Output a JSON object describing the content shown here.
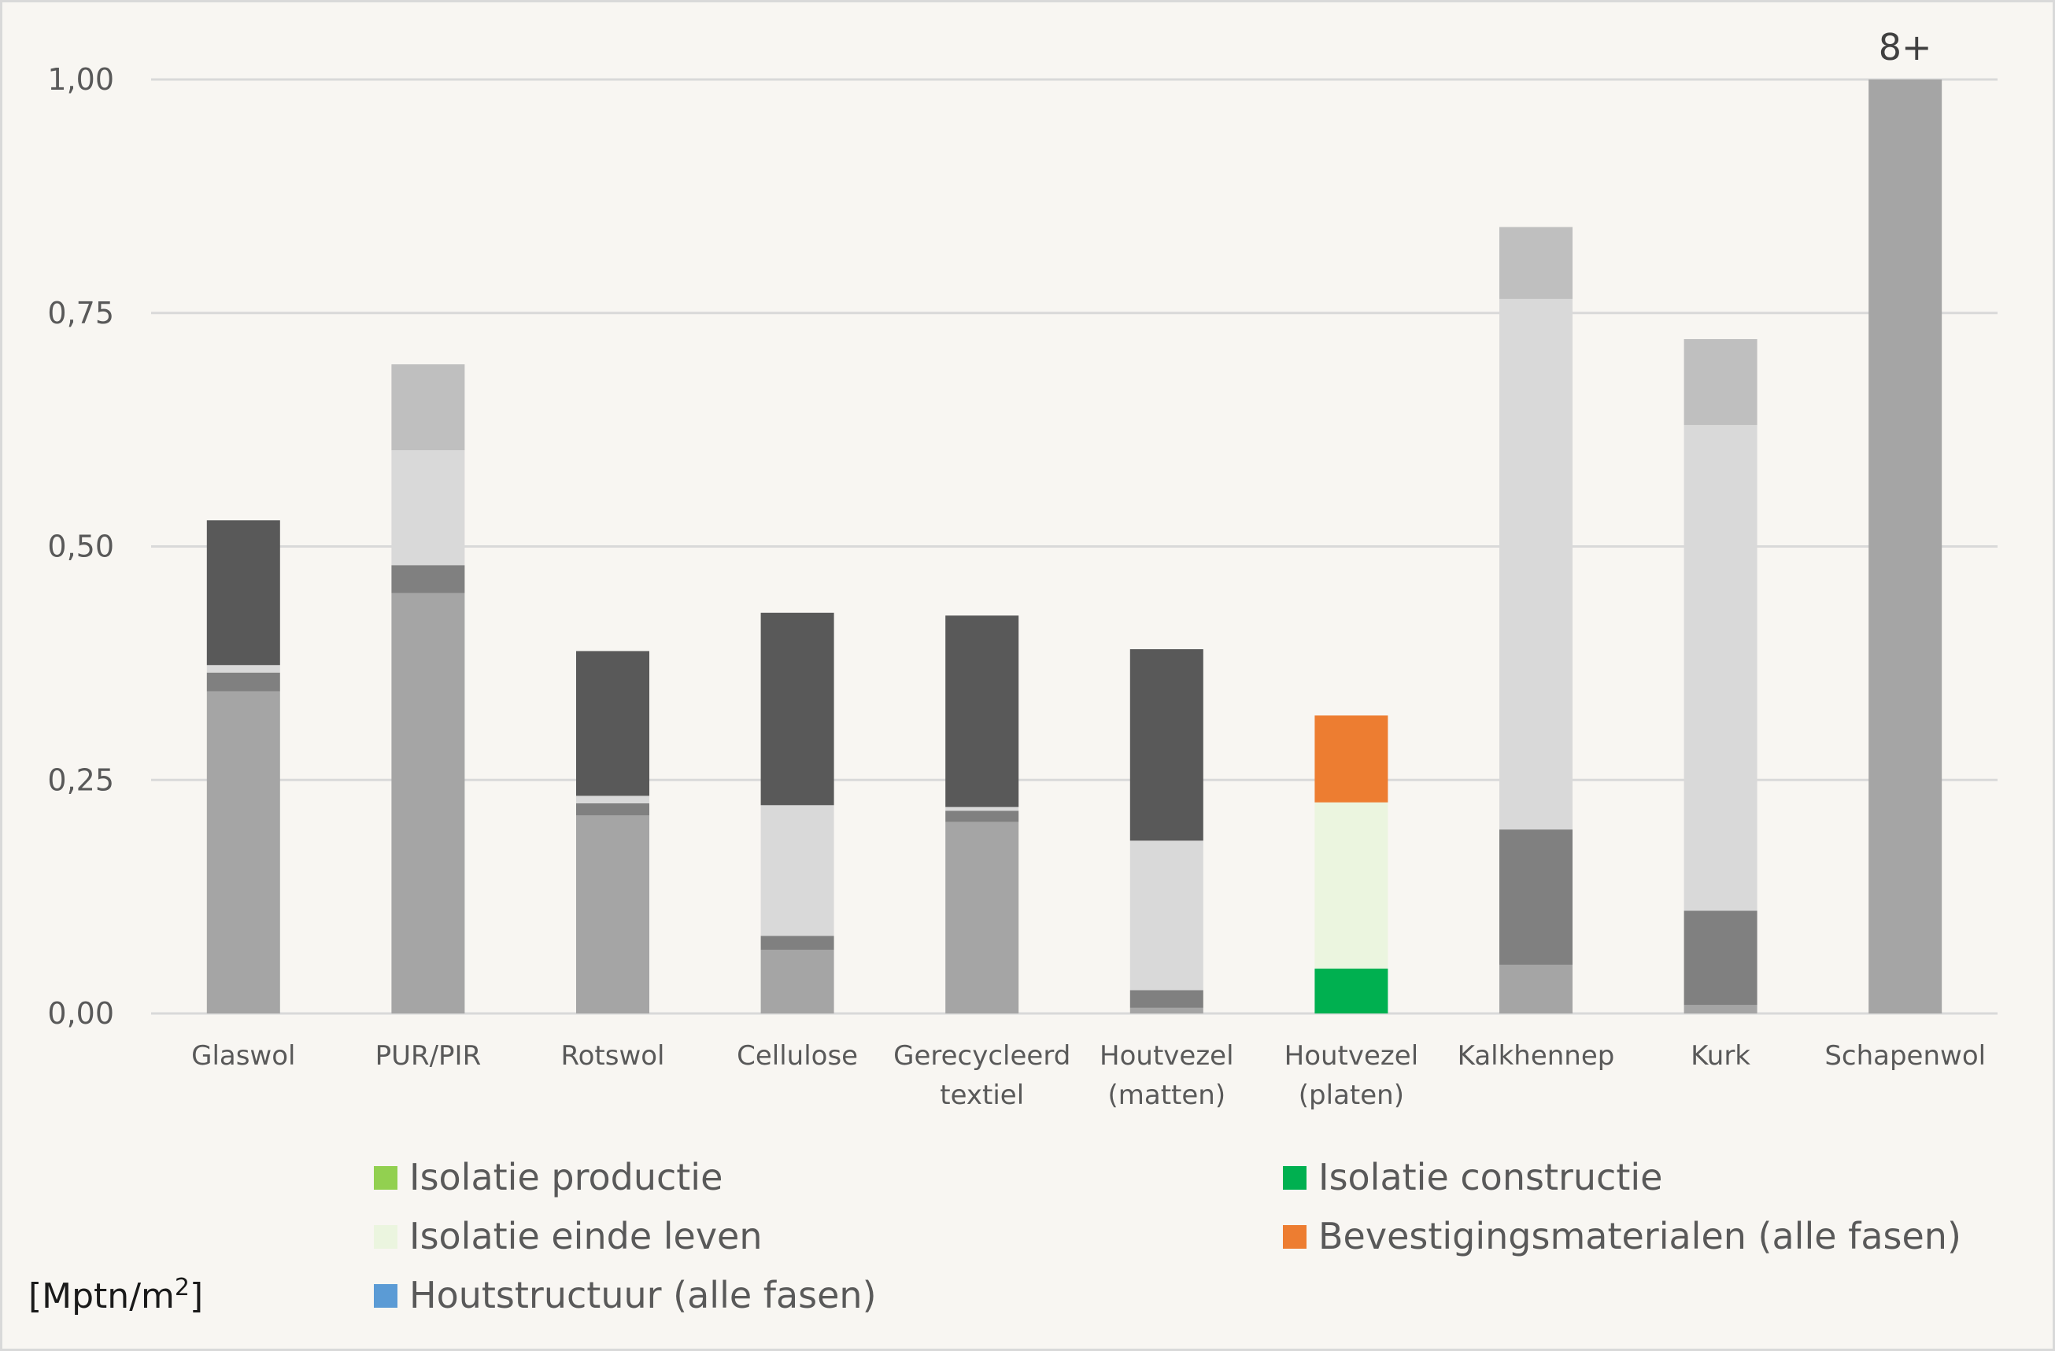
{
  "chart_data": {
    "type": "bar",
    "stacked": true,
    "categories": [
      [
        "Glaswol"
      ],
      [
        "PUR/PIR"
      ],
      [
        "Rotswol"
      ],
      [
        "Cellulose"
      ],
      [
        "Gerecycleerd",
        "textiel"
      ],
      [
        "Houtvezel",
        "(matten)"
      ],
      [
        "Houtvezel",
        "(platen)"
      ],
      [
        "Kalkhennep"
      ],
      [
        "Kurk"
      ],
      [
        "Schapenwol"
      ]
    ],
    "ylim": [
      0,
      1.0
    ],
    "yticks": [
      {
        "value": 0,
        "label": "0,00"
      },
      {
        "value": 0.25,
        "label": "0,25"
      },
      {
        "value": 0.5,
        "label": "0,50"
      },
      {
        "value": 0.75,
        "label": "0,75"
      },
      {
        "value": 1.0,
        "label": "1,00"
      }
    ],
    "ylabel": "[Mptn/m²]",
    "grid": true,
    "legend_position": "bottom",
    "colors": {
      "Isolatie productie": "#92d050",
      "Isolatie constructie": "#00b050",
      "Isolatie einde leven": "#ebf5df",
      "Bevestigingsmaterialen (alle fasen)": "#ed7d31",
      "Houtstructuur (alle fasen)": "#5b9bd5"
    },
    "legend": [
      "Isolatie productie",
      "Isolatie constructie",
      "Isolatie einde leven",
      "Bevestigingsmaterialen (alle fasen)",
      "Houtstructuur (alle fasen)"
    ],
    "segments": [
      [
        {
          "value": 0.345,
          "color": "#a5a5a5"
        },
        {
          "value": 0.02,
          "color": "#808080"
        },
        {
          "value": 0.008,
          "color": "#d9d9d9"
        },
        {
          "value": 0.155,
          "color": "#595959"
        }
      ],
      [
        {
          "value": 0.45,
          "color": "#a5a5a5"
        },
        {
          "value": 0.03,
          "color": "#808080"
        },
        {
          "value": 0.123,
          "color": "#d9d9d9"
        },
        {
          "value": 0.092,
          "color": "#bfbfbf"
        }
      ],
      [
        {
          "value": 0.212,
          "color": "#a5a5a5"
        },
        {
          "value": 0.013,
          "color": "#808080"
        },
        {
          "value": 0.008,
          "color": "#d9d9d9"
        },
        {
          "value": 0.155,
          "color": "#595959"
        }
      ],
      [
        {
          "value": 0.068,
          "color": "#a5a5a5"
        },
        {
          "value": 0.015,
          "color": "#808080"
        },
        {
          "value": 0.14,
          "color": "#d9d9d9"
        },
        {
          "value": 0.206,
          "color": "#595959"
        }
      ],
      [
        {
          "value": 0.205,
          "color": "#a5a5a5"
        },
        {
          "value": 0.012,
          "color": "#808080"
        },
        {
          "value": 0.004,
          "color": "#d9d9d9"
        },
        {
          "value": 0.205,
          "color": "#595959"
        }
      ],
      [
        {
          "value": 0.006,
          "color": "#a5a5a5"
        },
        {
          "value": 0.019,
          "color": "#808080"
        },
        {
          "value": 0.16,
          "color": "#d9d9d9"
        },
        {
          "value": 0.205,
          "color": "#595959"
        }
      ],
      [
        {
          "value": 0.048,
          "color": "#00b050"
        },
        {
          "value": 0.178,
          "color": "#ebf5df"
        },
        {
          "value": 0.093,
          "color": "#ed7d31"
        }
      ],
      [
        {
          "value": 0.052,
          "color": "#a5a5a5"
        },
        {
          "value": 0.145,
          "color": "#808080"
        },
        {
          "value": 0.568,
          "color": "#d9d9d9"
        },
        {
          "value": 0.077,
          "color": "#bfbfbf"
        }
      ],
      [
        {
          "value": 0.009,
          "color": "#a5a5a5"
        },
        {
          "value": 0.101,
          "color": "#808080"
        },
        {
          "value": 0.52,
          "color": "#d9d9d9"
        },
        {
          "value": 0.092,
          "color": "#bfbfbf"
        }
      ],
      [
        {
          "value": 1.0,
          "color": "#a5a5a5"
        }
      ]
    ],
    "annotations": [
      {
        "category_index": 9,
        "text": "8+"
      }
    ]
  }
}
